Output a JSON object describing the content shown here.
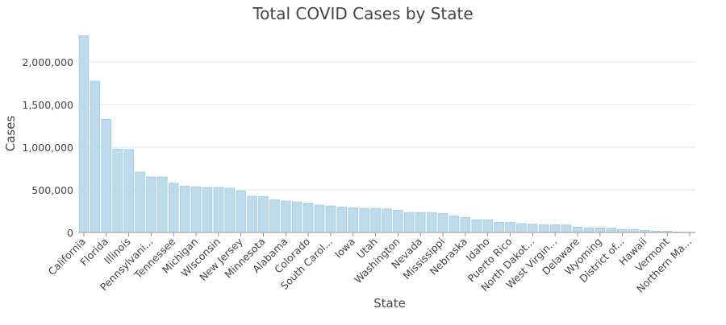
{
  "chart_data": {
    "type": "bar",
    "title": "Total COVID Cases by State",
    "xlabel": "State",
    "ylabel": "Cases",
    "ylim": [
      0,
      2310000
    ],
    "yticks": [
      0,
      500000,
      1000000,
      1500000,
      2000000
    ],
    "ytick_labels": [
      "0",
      "500,000",
      "1,000,000",
      "1,500,000",
      "2,000,000"
    ],
    "grid": "horizontal",
    "bar_color": "#bddbea",
    "bar_stroke": "#9fcbe0",
    "categories": [
      "California",
      "",
      "Florida",
      "",
      "Illinois",
      "",
      "Pennsylvani...",
      "",
      "Tennessee",
      "",
      "Michigan",
      "",
      "Wisconsin",
      "",
      "New Jersey",
      "",
      "Minnesota",
      "",
      "Alabama",
      "",
      "Colorado",
      "",
      "South Carol...",
      "",
      "Iowa",
      "",
      "Utah",
      "",
      "Washington",
      "",
      "Nevada",
      "",
      "Mississippi",
      "",
      "Nebraska",
      "",
      "Idaho",
      "",
      "Puerto Rico",
      "",
      "North Dakot...",
      "",
      "West Virgin...",
      "",
      "Delaware",
      "",
      "Wyoming",
      "",
      "District of...",
      "",
      "Hawaii",
      "",
      "Vermont",
      "",
      "Northern Ma..."
    ],
    "values": [
      2305000,
      1774000,
      1327000,
      978000,
      972000,
      708000,
      651000,
      651000,
      578000,
      544000,
      535000,
      528000,
      528000,
      519000,
      488000,
      425000,
      422000,
      384000,
      368000,
      358000,
      343000,
      321000,
      311000,
      299000,
      289000,
      283000,
      283000,
      276000,
      258000,
      233000,
      233000,
      233000,
      223000,
      192000,
      176000,
      148000,
      148000,
      120000,
      117000,
      104000,
      97000,
      91000,
      91000,
      88000,
      63000,
      53000,
      53000,
      50000,
      35000,
      33000,
      25000,
      16000,
      15000,
      6000,
      4000
    ]
  }
}
